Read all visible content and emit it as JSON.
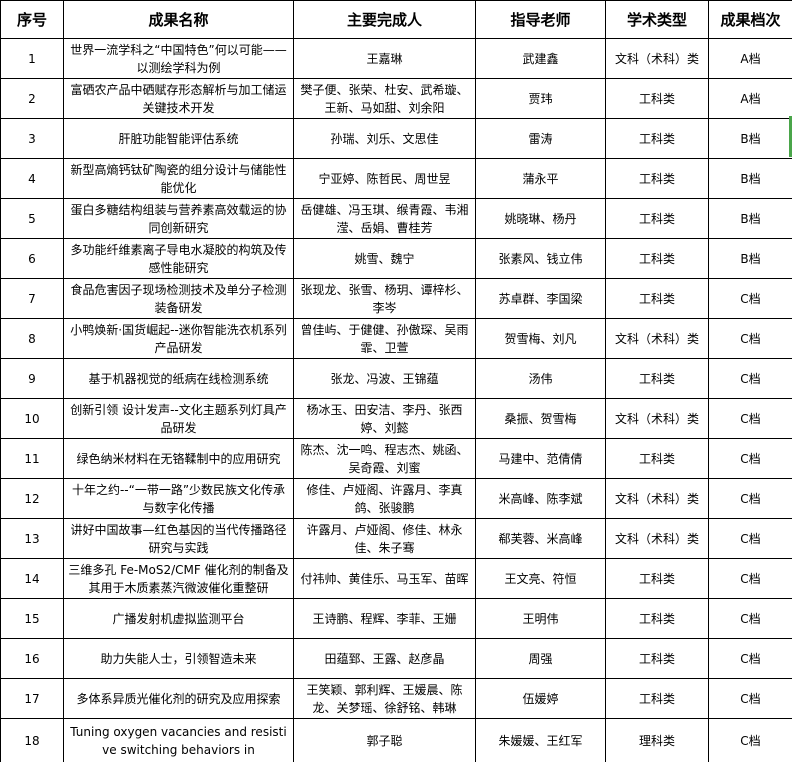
{
  "header": {
    "columns": [
      "序号",
      "成果名称",
      "主要完成人",
      "指导老师",
      "学术类型",
      "成果档次"
    ]
  },
  "rows": [
    {
      "no": "1",
      "name": "世界一流学科之“中国特色”何以可能——以测绘学科为例",
      "contributors": "王嘉琳",
      "advisors": "武建鑫",
      "type": "文科（术科）类",
      "grade": "A档"
    },
    {
      "no": "2",
      "name": "富硒农产品中硒赋存形态解析与加工储运关键技术开发",
      "contributors": "樊子便、张荣、杜安、武希璇、王新、马如甜、刘余阳",
      "advisors": "贾玮",
      "type": "工科类",
      "grade": "A档"
    },
    {
      "no": "3",
      "name": "肝脏功能智能评估系统",
      "contributors": "孙瑞、刘乐、文思佳",
      "advisors": "雷涛",
      "type": "工科类",
      "grade": "B档"
    },
    {
      "no": "4",
      "name": "新型高熵钙钛矿陶瓷的组分设计与储能性能优化",
      "contributors": "宁亚婷、陈哲民、周世昱",
      "advisors": "蒲永平",
      "type": "工科类",
      "grade": "B档"
    },
    {
      "no": "5",
      "name": "蛋白多糖结构组装与营养素高效载运的协同创新研究",
      "contributors": "岳健雄、冯玉琪、缑青霞、韦湘滢、岳娟、曹桂芳",
      "advisors": "姚晓琳、杨丹",
      "type": "工科类",
      "grade": "B档"
    },
    {
      "no": "6",
      "name": "多功能纤维素离子导电水凝胶的构筑及传感性能研究",
      "contributors": "姚雪、魏宁",
      "advisors": "张素风、钱立伟",
      "type": "工科类",
      "grade": "B档"
    },
    {
      "no": "7",
      "name": "食品危害因子现场检测技术及单分子检测装备研发",
      "contributors": "张现龙、张雪、杨玥、谭梓杉、李岑",
      "advisors": "苏卓群、李国梁",
      "type": "工科类",
      "grade": "C档"
    },
    {
      "no": "8",
      "name": "小鸭焕新·国货崛起--迷你智能洗衣机系列产品研发",
      "contributors": "曾佳屿、于健健、孙傲琛、吴雨霏、卫萱",
      "advisors": "贺雪梅、刘凡",
      "type": "文科（术科）类",
      "grade": "C档"
    },
    {
      "no": "9",
      "name": "基于机器视觉的纸病在线检测系统",
      "contributors": "张龙、冯波、王锦蕴",
      "advisors": "汤伟",
      "type": "工科类",
      "grade": "C档"
    },
    {
      "no": "10",
      "name": "创新引领 设计发声--文化主题系列灯具产品研发",
      "contributors": "杨冰玉、田安洁、李丹、张西婷、刘懿",
      "advisors": "桑振、贺雪梅",
      "type": "文科（术科）类",
      "grade": "C档"
    },
    {
      "no": "11",
      "name": "绿色纳米材料在无铬鞣制中的应用研究",
      "contributors": "陈杰、沈一鸣、程志杰、姚函、吴奇霞、刘蜜",
      "advisors": "马建中、范倩倩",
      "type": "工科类",
      "grade": "C档"
    },
    {
      "no": "12",
      "name": "十年之约--“一带一路”少数民族文化传承与数字化传播",
      "contributors": "修佳、卢娅阁、许露月、李真鸽、张骏鹏",
      "advisors": "米高峰、陈李斌",
      "type": "文科（术科）类",
      "grade": "C档"
    },
    {
      "no": "13",
      "name": "讲好中国故事—红色基因的当代传播路径研究与实践",
      "contributors": "许露月、卢娅阁、修佳、林永佳、朱子骞",
      "advisors": "郗芙蓉、米高峰",
      "type": "文科（术科）类",
      "grade": "C档"
    },
    {
      "no": "14",
      "name": "三维多孔 Fe-MoS2/CMF 催化剂的制备及其用于木质素蒸汽微波催化重整研",
      "contributors": "付祎帅、黄佳乐、马玉军、苗晖",
      "advisors": "王文亮、符恒",
      "type": "工科类",
      "grade": "C档"
    },
    {
      "no": "15",
      "name": "广播发射机虚拟监测平台",
      "contributors": "王诗鹏、程辉、李菲、王姗",
      "advisors": "王明伟",
      "type": "工科类",
      "grade": "C档"
    },
    {
      "no": "16",
      "name": "助力失能人士，引领智造未来",
      "contributors": "田蕴郅、王露、赵彦晶",
      "advisors": "周强",
      "type": "工科类",
      "grade": "C档"
    },
    {
      "no": "17",
      "name": "多体系异质光催化剂的研究及应用探索",
      "contributors": "王笑颖、郭利辉、王媛晨、陈龙、关梦瑶、徐舒铭、韩琳",
      "advisors": "伍媛婷",
      "type": "工科类",
      "grade": "C档"
    },
    {
      "no": "18",
      "name": "Tuning oxygen vacancies and resistive switching behaviors in",
      "contributors": "郭子聪",
      "advisors": "朱媛媛、王红军",
      "type": "理科类",
      "grade": "C档"
    }
  ],
  "selection_indicator": {
    "color": "#4AA54A"
  }
}
